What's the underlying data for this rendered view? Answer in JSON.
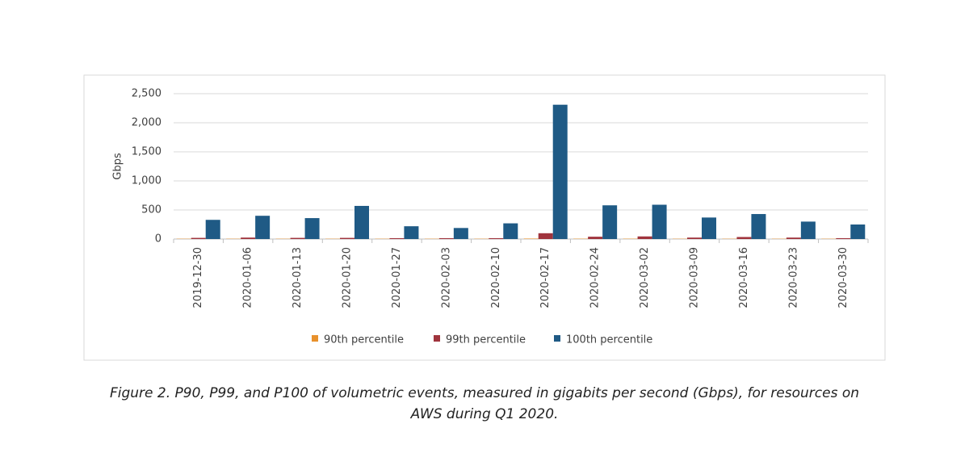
{
  "chart_data": {
    "type": "bar",
    "y_label": "Gbps",
    "caption": "Figure 2. P90, P99, and P100 of volumetric events, measured in gigabits per second (Gbps), for resources on AWS during Q1 2020.",
    "categories": [
      "2019-12-30",
      "2020-01-06",
      "2020-01-13",
      "2020-01-20",
      "2020-01-27",
      "2020-02-03",
      "2020-02-10",
      "2020-02-17",
      "2020-02-24",
      "2020-03-02",
      "2020-03-09",
      "2020-03-16",
      "2020-03-23",
      "2020-03-30"
    ],
    "series": [
      {
        "name": "90th percentile",
        "color": "#e8912c",
        "values": [
          5,
          5,
          5,
          5,
          5,
          5,
          5,
          8,
          6,
          6,
          5,
          5,
          5,
          5
        ]
      },
      {
        "name": "99th percentile",
        "color": "#a0343d",
        "values": [
          20,
          25,
          20,
          20,
          15,
          15,
          15,
          100,
          40,
          45,
          25,
          35,
          25,
          15
        ]
      },
      {
        "name": "100th percentile",
        "color": "#1f5a85",
        "values": [
          330,
          400,
          360,
          570,
          220,
          190,
          270,
          2310,
          580,
          590,
          370,
          430,
          300,
          250
        ]
      }
    ],
    "ylim": [
      0,
      2500
    ],
    "yticks": [
      0,
      500,
      {
        "value": 1000,
        "label": "1,000"
      },
      {
        "value": 1500,
        "label": "1,500"
      },
      {
        "value": 2000,
        "label": "2,000"
      },
      {
        "value": 2500,
        "label": "2,500"
      }
    ],
    "grid": true
  }
}
